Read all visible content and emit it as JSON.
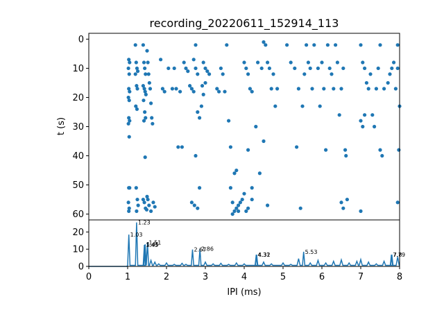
{
  "chart_data": [
    {
      "type": "scatter",
      "title": "recording_20220611_152914_113",
      "xlabel": "",
      "ylabel": "t (s)",
      "xlim": [
        0,
        8
      ],
      "ylim": [
        62,
        -2
      ],
      "y_inverted": true,
      "yticks": [
        0,
        10,
        20,
        30,
        40,
        50,
        60
      ],
      "color": "#1f77b4",
      "points": [
        [
          1.03,
          7
        ],
        [
          1.05,
          8
        ],
        [
          1.02,
          10
        ],
        [
          1.04,
          12
        ],
        [
          1.03,
          17
        ],
        [
          1.05,
          18
        ],
        [
          1.02,
          20
        ],
        [
          1.04,
          21
        ],
        [
          1.03,
          27
        ],
        [
          1.05,
          28
        ],
        [
          1.02,
          29
        ],
        [
          1.04,
          33.5
        ],
        [
          1.03,
          51
        ],
        [
          1.05,
          51
        ],
        [
          1.02,
          56
        ],
        [
          1.04,
          58
        ],
        [
          1.03,
          59
        ],
        [
          1.2,
          2
        ],
        [
          1.22,
          8
        ],
        [
          1.24,
          10
        ],
        [
          1.26,
          11
        ],
        [
          1.2,
          12
        ],
        [
          1.23,
          16
        ],
        [
          1.25,
          17
        ],
        [
          1.21,
          23
        ],
        [
          1.24,
          24
        ],
        [
          1.22,
          51
        ],
        [
          1.25,
          55
        ],
        [
          1.27,
          57
        ],
        [
          1.23,
          59
        ],
        [
          1.4,
          2
        ],
        [
          1.42,
          8
        ],
        [
          1.44,
          10
        ],
        [
          1.46,
          12
        ],
        [
          1.4,
          16
        ],
        [
          1.43,
          17
        ],
        [
          1.45,
          18
        ],
        [
          1.47,
          19
        ],
        [
          1.41,
          21
        ],
        [
          1.44,
          25
        ],
        [
          1.46,
          27
        ],
        [
          1.42,
          28
        ],
        [
          1.45,
          40.5
        ],
        [
          1.4,
          55
        ],
        [
          1.43,
          56
        ],
        [
          1.46,
          58
        ],
        [
          1.49,
          58.5
        ],
        [
          1.52,
          55
        ],
        [
          1.55,
          57
        ],
        [
          1.6,
          59
        ],
        [
          1.5,
          4
        ],
        [
          1.52,
          8
        ],
        [
          1.54,
          12
        ],
        [
          1.56,
          15
        ],
        [
          1.58,
          17
        ],
        [
          1.6,
          22
        ],
        [
          1.62,
          27
        ],
        [
          1.64,
          29
        ],
        [
          1.5,
          54
        ],
        [
          1.66,
          56
        ],
        [
          1.7,
          57.5
        ],
        [
          1.85,
          7
        ],
        [
          1.9,
          17
        ],
        [
          1.95,
          18
        ],
        [
          2.05,
          10
        ],
        [
          2.15,
          17
        ],
        [
          2.2,
          10
        ],
        [
          2.3,
          37
        ],
        [
          2.4,
          37
        ],
        [
          2.25,
          17
        ],
        [
          2.35,
          18
        ],
        [
          2.45,
          8
        ],
        [
          2.5,
          10
        ],
        [
          2.55,
          11
        ],
        [
          2.6,
          16
        ],
        [
          2.65,
          17
        ],
        [
          2.7,
          18
        ],
        [
          2.75,
          2
        ],
        [
          2.7,
          7
        ],
        [
          2.75,
          10
        ],
        [
          2.8,
          12
        ],
        [
          2.65,
          56
        ],
        [
          2.72,
          57
        ],
        [
          2.8,
          58
        ],
        [
          2.85,
          51
        ],
        [
          2.75,
          40
        ],
        [
          2.8,
          25
        ],
        [
          2.85,
          27
        ],
        [
          2.9,
          23
        ],
        [
          2.95,
          8
        ],
        [
          3.0,
          10
        ],
        [
          3.05,
          11
        ],
        [
          3.1,
          12
        ],
        [
          2.95,
          19
        ],
        [
          3.0,
          15
        ],
        [
          2.92,
          16
        ],
        [
          3.3,
          17
        ],
        [
          3.35,
          18
        ],
        [
          3.4,
          10
        ],
        [
          3.45,
          12
        ],
        [
          3.5,
          18
        ],
        [
          3.55,
          2
        ],
        [
          3.6,
          28
        ],
        [
          3.65,
          37
        ],
        [
          3.7,
          60
        ],
        [
          3.75,
          59
        ],
        [
          3.8,
          58
        ],
        [
          3.85,
          57
        ],
        [
          3.9,
          56
        ],
        [
          3.95,
          55
        ],
        [
          3.75,
          46
        ],
        [
          3.8,
          45
        ],
        [
          3.65,
          51
        ],
        [
          3.7,
          56
        ],
        [
          3.85,
          59
        ],
        [
          4.0,
          8
        ],
        [
          4.05,
          10
        ],
        [
          4.1,
          12
        ],
        [
          4.15,
          17
        ],
        [
          4.2,
          18
        ],
        [
          4.0,
          53
        ],
        [
          4.05,
          59
        ],
        [
          4.1,
          58
        ],
        [
          4.2,
          55
        ],
        [
          4.1,
          38
        ],
        [
          4.4,
          46
        ],
        [
          4.3,
          30
        ],
        [
          4.2,
          51
        ],
        [
          4.35,
          8
        ],
        [
          4.45,
          10
        ],
        [
          4.5,
          1
        ],
        [
          4.55,
          2
        ],
        [
          4.6,
          8
        ],
        [
          4.65,
          10
        ],
        [
          4.7,
          17
        ],
        [
          4.75,
          12
        ],
        [
          4.8,
          23
        ],
        [
          4.85,
          17
        ],
        [
          4.5,
          35
        ],
        [
          4.6,
          57
        ],
        [
          5.1,
          2
        ],
        [
          5.2,
          8
        ],
        [
          5.3,
          10
        ],
        [
          5.4,
          17
        ],
        [
          5.5,
          23
        ],
        [
          5.55,
          12
        ],
        [
          5.35,
          37
        ],
        [
          5.45,
          58
        ],
        [
          5.6,
          2
        ],
        [
          5.65,
          8
        ],
        [
          5.7,
          10
        ],
        [
          5.75,
          17
        ],
        [
          5.8,
          2
        ],
        [
          5.9,
          10
        ],
        [
          5.95,
          23
        ],
        [
          6.0,
          8
        ],
        [
          6.05,
          17
        ],
        [
          6.1,
          38
        ],
        [
          6.15,
          2
        ],
        [
          6.2,
          10
        ],
        [
          6.25,
          12
        ],
        [
          6.3,
          17
        ],
        [
          6.35,
          2
        ],
        [
          6.4,
          8
        ],
        [
          6.45,
          26
        ],
        [
          6.5,
          17
        ],
        [
          6.55,
          10
        ],
        [
          6.6,
          38
        ],
        [
          6.62,
          40
        ],
        [
          6.5,
          56
        ],
        [
          6.55,
          58
        ],
        [
          6.65,
          55
        ],
        [
          7.0,
          2
        ],
        [
          7.05,
          8
        ],
        [
          7.1,
          10
        ],
        [
          7.15,
          15
        ],
        [
          7.2,
          17
        ],
        [
          7.25,
          12
        ],
        [
          7.0,
          28
        ],
        [
          7.05,
          30
        ],
        [
          7.1,
          26
        ],
        [
          7.3,
          26
        ],
        [
          7.35,
          30
        ],
        [
          7.4,
          17
        ],
        [
          7.45,
          10
        ],
        [
          7.5,
          2
        ],
        [
          7.5,
          38
        ],
        [
          7.55,
          40
        ],
        [
          7.6,
          17
        ],
        [
          7.7,
          15
        ],
        [
          7.75,
          12
        ],
        [
          7.8,
          10
        ],
        [
          7.85,
          8
        ],
        [
          7.9,
          17
        ],
        [
          7.95,
          10
        ],
        [
          7.95,
          2
        ],
        [
          8.0,
          23
        ],
        [
          7.98,
          38
        ],
        [
          7.95,
          56
        ],
        [
          7.0,
          59
        ]
      ]
    },
    {
      "type": "line",
      "xlabel": "IPI (ms)",
      "ylabel": "",
      "xlim": [
        0,
        8
      ],
      "ylim": [
        0,
        27
      ],
      "xticks": [
        0,
        1,
        2,
        3,
        4,
        5,
        6,
        7,
        8
      ],
      "yticks": [
        0,
        10,
        20
      ],
      "color": "#1f77b4",
      "peaks": [
        {
          "x": 1.03,
          "y": 18.5,
          "label": "1.03"
        },
        {
          "x": 1.23,
          "y": 25.5,
          "label": "1.23"
        },
        {
          "x": 1.43,
          "y": 12.5,
          "label": "1.43"
        },
        {
          "x": 1.45,
          "y": 12.8,
          "label": "1.45"
        },
        {
          "x": 1.51,
          "y": 14.0,
          "label": "1.51"
        },
        {
          "x": 2.67,
          "y": 9.8,
          "label": "2.67"
        },
        {
          "x": 2.86,
          "y": 10.2,
          "label": "2.86"
        },
        {
          "x": 4.31,
          "y": 6.8,
          "label": "4.31"
        },
        {
          "x": 4.32,
          "y": 6.8,
          "label": "4.32"
        },
        {
          "x": 5.53,
          "y": 8.5,
          "label": "5.53"
        },
        {
          "x": 7.79,
          "y": 6.8,
          "label": "7.79"
        },
        {
          "x": 7.8,
          "y": 6.8,
          "label": "7.8"
        }
      ],
      "baseline": [
        [
          1.6,
          3.5
        ],
        [
          1.7,
          2.5
        ],
        [
          1.8,
          1.5
        ],
        [
          2.0,
          2.0
        ],
        [
          2.2,
          1.2
        ],
        [
          2.4,
          1.8
        ],
        [
          2.5,
          1.2
        ],
        [
          3.0,
          2.5
        ],
        [
          3.2,
          1.5
        ],
        [
          3.4,
          1.8
        ],
        [
          3.6,
          1.2
        ],
        [
          3.8,
          2.0
        ],
        [
          4.0,
          1.5
        ],
        [
          4.5,
          2.5
        ],
        [
          4.7,
          1.5
        ],
        [
          5.0,
          2.0
        ],
        [
          5.2,
          1.2
        ],
        [
          5.4,
          4.5
        ],
        [
          5.7,
          2.0
        ],
        [
          5.9,
          3.5
        ],
        [
          6.1,
          2.0
        ],
        [
          6.3,
          3.0
        ],
        [
          6.5,
          3.8
        ],
        [
          6.7,
          2.0
        ],
        [
          6.9,
          3.0
        ],
        [
          7.0,
          4.0
        ],
        [
          7.2,
          2.5
        ],
        [
          7.4,
          1.5
        ],
        [
          7.6,
          3.0
        ],
        [
          7.95,
          5.5
        ]
      ]
    }
  ]
}
